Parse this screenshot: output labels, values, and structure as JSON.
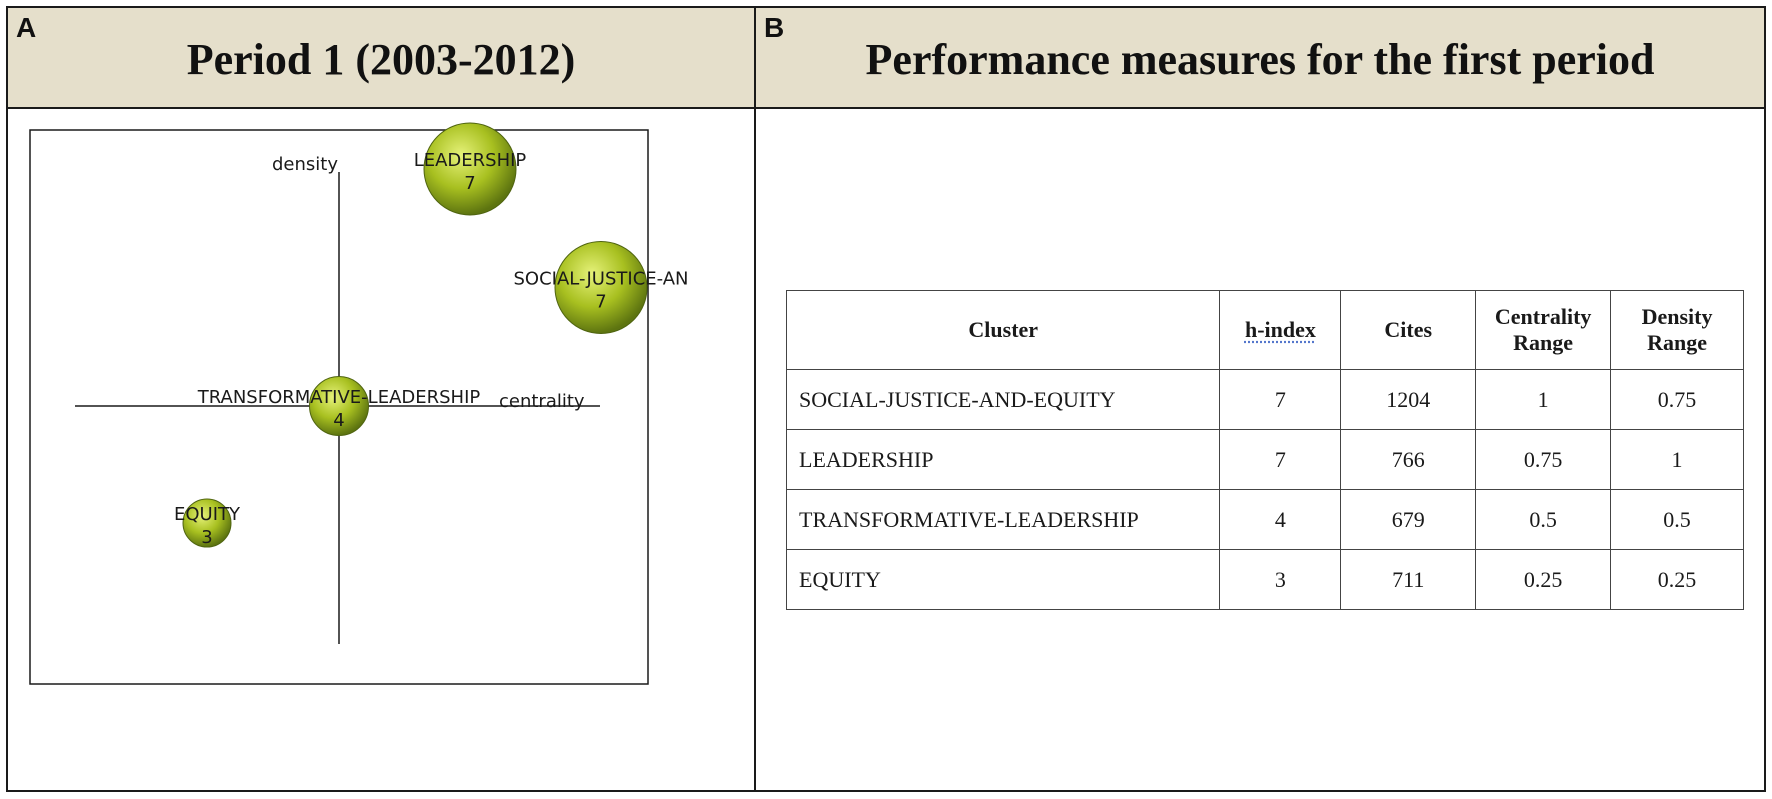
{
  "panels": {
    "a": {
      "letter": "A",
      "title": "Period 1 (2003-2012)"
    },
    "b": {
      "letter": "B",
      "title": "Performance measures for the first period"
    }
  },
  "chart_data": {
    "type": "scatter",
    "title": "Period 1 (2003-2012)",
    "xlabel": "centrality",
    "ylabel": "density",
    "bubble_color": "#a8c020",
    "points": [
      {
        "label": "LEADERSHIP",
        "value": "7",
        "centrality_rank": 0.75,
        "density_rank": 1,
        "size": 7
      },
      {
        "label": "SOCIAL-JUSTICE-AN",
        "value": "7",
        "centrality_rank": 1,
        "density_rank": 0.75,
        "size": 7
      },
      {
        "label": "TRANSFORMATIVE-LEADERSHIP",
        "value": "4",
        "centrality_rank": 0.5,
        "density_rank": 0.5,
        "size": 4
      },
      {
        "label": "EQUITY",
        "value": "3",
        "centrality_rank": 0.25,
        "density_rank": 0.25,
        "size": 3
      }
    ]
  },
  "table": {
    "headers": [
      "Cluster",
      "h-index",
      "Cites",
      "Centrality Range",
      "Density Range"
    ],
    "rows": [
      [
        "SOCIAL-JUSTICE-AND-EQUITY",
        "7",
        "1204",
        "1",
        "0.75"
      ],
      [
        "LEADERSHIP",
        "7",
        "766",
        "0.75",
        "1"
      ],
      [
        "TRANSFORMATIVE-LEADERSHIP",
        "4",
        "679",
        "0.5",
        "0.5"
      ],
      [
        "EQUITY",
        "3",
        "711",
        "0.25",
        "0.25"
      ]
    ]
  }
}
